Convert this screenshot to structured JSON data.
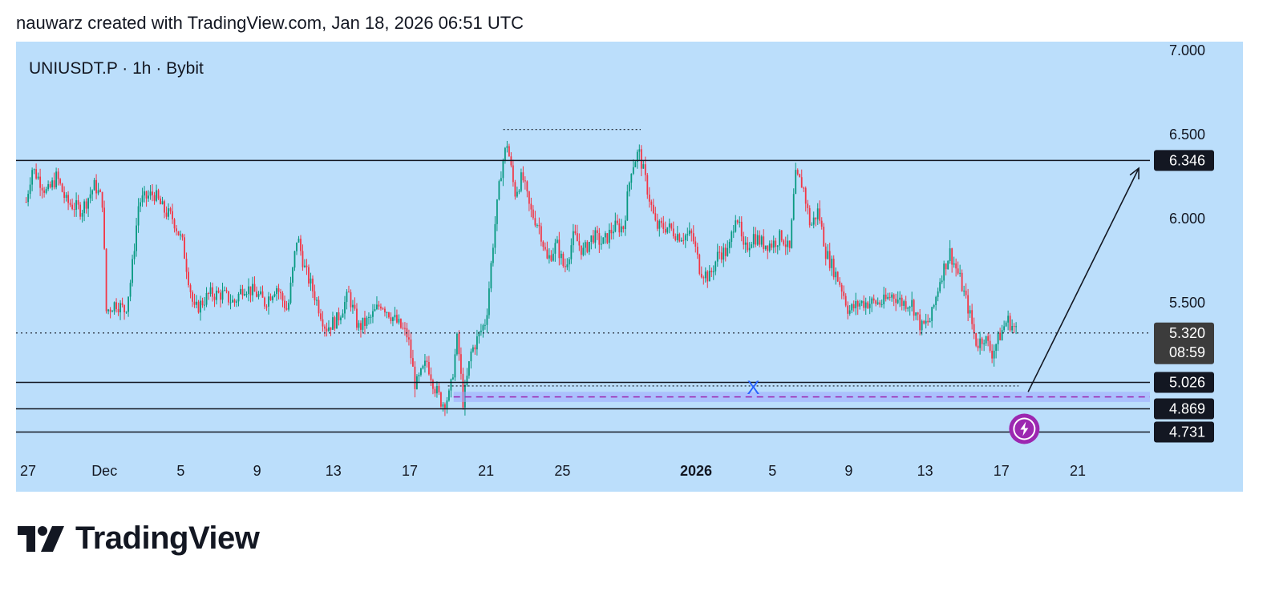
{
  "header": {
    "caption": "nauwarz created with TradingView.com, Jan 18, 2026 06:51 UTC"
  },
  "brand": {
    "name": "TradingView"
  },
  "colors": {
    "chart_bg": "#bbdefb",
    "up_candle": "#089981",
    "down_candle": "#f23645",
    "line": "#131722",
    "badge": "#131722",
    "price_badge": "#3c3c3c",
    "zone_fill": "#9fa8ff",
    "zone_line": "#9c27b0",
    "annotation": "#2962ff",
    "alert_icon": "#9c27b0"
  },
  "chart_data": {
    "type": "candlestick",
    "symbol_label": "UNIUSDT.P · 1h · Bybit",
    "symbol": "UNIUSDT.P",
    "interval": "1h",
    "exchange": "Bybit",
    "y_axis": {
      "ticks": [
        "7.000",
        "6.500",
        "6.000",
        "5.500"
      ],
      "tick_values": [
        7.0,
        6.5,
        6.0,
        5.5
      ],
      "range": [
        4.62,
        7.07
      ],
      "position": "right"
    },
    "x_axis": {
      "ticks": [
        {
          "label": "27",
          "day": 0,
          "bold": false
        },
        {
          "label": "Dec",
          "day": 4,
          "bold": false
        },
        {
          "label": "5",
          "day": 8,
          "bold": false
        },
        {
          "label": "9",
          "day": 12,
          "bold": false
        },
        {
          "label": "13",
          "day": 16,
          "bold": false
        },
        {
          "label": "17",
          "day": 20,
          "bold": false
        },
        {
          "label": "21",
          "day": 24,
          "bold": false
        },
        {
          "label": "25",
          "day": 28,
          "bold": false
        },
        {
          "label": "2026",
          "day": 35,
          "bold": true
        },
        {
          "label": "5",
          "day": 39,
          "bold": false
        },
        {
          "label": "9",
          "day": 43,
          "bold": false
        },
        {
          "label": "13",
          "day": 47,
          "bold": false
        },
        {
          "label": "17",
          "day": 51,
          "bold": false
        },
        {
          "label": "21",
          "day": 55,
          "bold": false
        }
      ]
    },
    "price_path": [
      [
        -0.1,
        6.1
      ],
      [
        0.2,
        6.3
      ],
      [
        0.5,
        6.25
      ],
      [
        1.0,
        6.15
      ],
      [
        1.5,
        6.25
      ],
      [
        2.0,
        6.1
      ],
      [
        2.8,
        6.05
      ],
      [
        3.5,
        6.2
      ],
      [
        3.9,
        6.1
      ],
      [
        4.1,
        5.45
      ],
      [
        4.6,
        5.5
      ],
      [
        5.1,
        5.45
      ],
      [
        5.4,
        5.65
      ],
      [
        5.8,
        6.1
      ],
      [
        6.6,
        6.15
      ],
      [
        7.1,
        6.05
      ],
      [
        7.6,
        6.0
      ],
      [
        8.1,
        5.85
      ],
      [
        8.7,
        5.45
      ],
      [
        9.5,
        5.55
      ],
      [
        10.2,
        5.55
      ],
      [
        10.8,
        5.5
      ],
      [
        11.3,
        5.6
      ],
      [
        12.0,
        5.55
      ],
      [
        12.4,
        5.5
      ],
      [
        13.0,
        5.6
      ],
      [
        13.6,
        5.45
      ],
      [
        14.1,
        5.9
      ],
      [
        14.5,
        5.7
      ],
      [
        15.0,
        5.55
      ],
      [
        15.6,
        5.35
      ],
      [
        16.2,
        5.4
      ],
      [
        16.8,
        5.55
      ],
      [
        17.3,
        5.35
      ],
      [
        17.9,
        5.4
      ],
      [
        18.5,
        5.5
      ],
      [
        19.2,
        5.4
      ],
      [
        19.9,
        5.3
      ],
      [
        20.3,
        5.0
      ],
      [
        20.9,
        5.15
      ],
      [
        21.3,
        5.0
      ],
      [
        21.7,
        4.9
      ],
      [
        22.1,
        4.95
      ],
      [
        22.5,
        5.3
      ],
      [
        22.8,
        4.9
      ],
      [
        23.2,
        5.2
      ],
      [
        23.6,
        5.3
      ],
      [
        24.0,
        5.4
      ],
      [
        24.4,
        5.9
      ],
      [
        24.8,
        6.3
      ],
      [
        25.1,
        6.45
      ],
      [
        25.5,
        6.15
      ],
      [
        25.9,
        6.25
      ],
      [
        26.3,
        6.05
      ],
      [
        26.8,
        5.95
      ],
      [
        27.2,
        5.75
      ],
      [
        27.7,
        5.85
      ],
      [
        28.1,
        5.7
      ],
      [
        28.6,
        5.9
      ],
      [
        29.1,
        5.8
      ],
      [
        29.6,
        5.9
      ],
      [
        30.1,
        5.85
      ],
      [
        30.7,
        5.95
      ],
      [
        31.2,
        5.95
      ],
      [
        31.6,
        6.3
      ],
      [
        32.0,
        6.4
      ],
      [
        32.4,
        6.2
      ],
      [
        32.9,
        5.95
      ],
      [
        33.5,
        5.95
      ],
      [
        34.1,
        5.9
      ],
      [
        34.8,
        5.9
      ],
      [
        35.2,
        5.7
      ],
      [
        35.7,
        5.65
      ],
      [
        36.2,
        5.8
      ],
      [
        36.7,
        5.8
      ],
      [
        37.1,
        6.05
      ],
      [
        37.5,
        5.8
      ],
      [
        38.0,
        5.9
      ],
      [
        38.5,
        5.85
      ],
      [
        39.0,
        5.85
      ],
      [
        39.5,
        5.9
      ],
      [
        39.9,
        5.8
      ],
      [
        40.2,
        6.25
      ],
      [
        40.6,
        6.2
      ],
      [
        41.0,
        5.95
      ],
      [
        41.4,
        6.05
      ],
      [
        41.8,
        5.8
      ],
      [
        42.2,
        5.7
      ],
      [
        42.6,
        5.6
      ],
      [
        43.0,
        5.45
      ],
      [
        43.6,
        5.5
      ],
      [
        44.2,
        5.5
      ],
      [
        44.8,
        5.5
      ],
      [
        45.3,
        5.55
      ],
      [
        45.8,
        5.5
      ],
      [
        46.3,
        5.5
      ],
      [
        46.8,
        5.35
      ],
      [
        47.3,
        5.4
      ],
      [
        47.8,
        5.65
      ],
      [
        48.3,
        5.8
      ],
      [
        48.8,
        5.65
      ],
      [
        49.3,
        5.45
      ],
      [
        49.7,
        5.25
      ],
      [
        50.1,
        5.3
      ],
      [
        50.5,
        5.2
      ],
      [
        50.9,
        5.3
      ],
      [
        51.3,
        5.4
      ],
      [
        51.8,
        5.33
      ]
    ],
    "horizontal_levels": [
      {
        "label": "6.346",
        "value": 6.346
      },
      {
        "label": "5.026",
        "value": 5.026
      },
      {
        "label": "4.869",
        "value": 4.869
      },
      {
        "label": "4.731",
        "value": 4.731
      }
    ],
    "last_price": {
      "label": "5.320",
      "value": 5.32,
      "countdown": "08:59"
    },
    "zone": {
      "top": 4.97,
      "bottom": 4.91,
      "midline": 4.94,
      "start_day": 22.3
    },
    "dotted_high": {
      "value": 6.53,
      "start_day": 24.9,
      "end_day": 32.1
    },
    "dotted_low": {
      "value": 5.005,
      "start_day": 22.0,
      "end_day": 51.9
    },
    "annotation_x": {
      "text": "X",
      "day": 38.0,
      "value": 5.0
    },
    "projection_arrow": {
      "from_day": 52.4,
      "from_value": 4.97,
      "to_day": 58.2,
      "to_value": 6.3
    },
    "alert_icon": {
      "day": 52.2,
      "value": 4.75,
      "icon": "lightning-icon"
    }
  }
}
